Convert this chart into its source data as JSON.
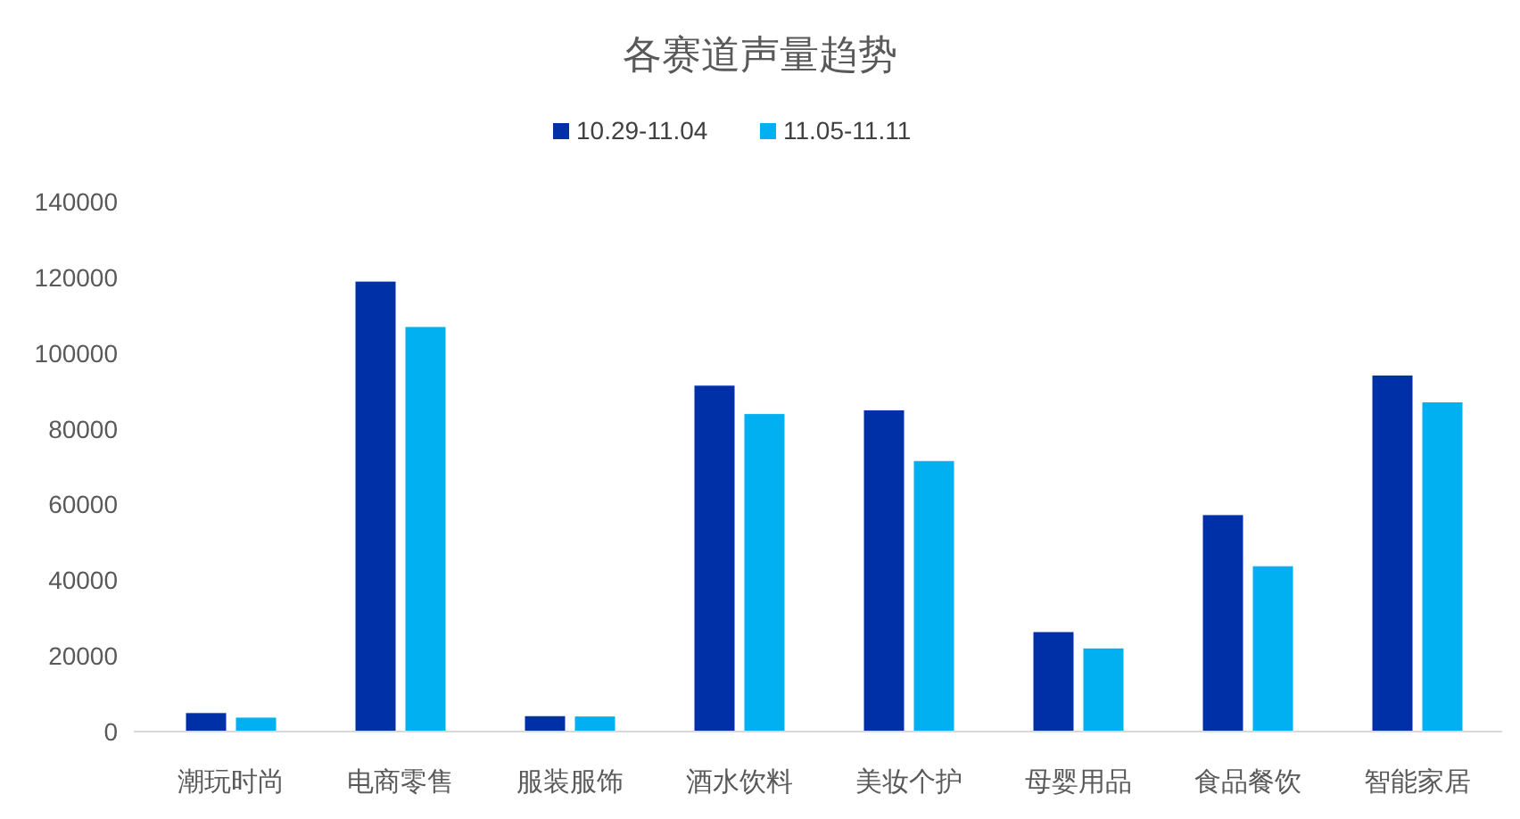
{
  "chart_data": {
    "type": "bar",
    "title": "各赛道声量趋势",
    "categories": [
      "潮玩时尚",
      "电商零售",
      "服装服饰",
      "酒水饮料",
      "美妆个护",
      "母婴用品",
      "食品餐饮",
      "智能家居"
    ],
    "series": [
      {
        "name": "10.29-11.04",
        "color": "#0030a8",
        "values": [
          5000,
          119000,
          4200,
          91500,
          85000,
          26400,
          57300,
          94200
        ]
      },
      {
        "name": "11.05-11.11",
        "color": "#00b0f0",
        "values": [
          3800,
          107000,
          4100,
          84000,
          71600,
          22100,
          43800,
          87100
        ]
      }
    ],
    "ylim": [
      0,
      140000
    ],
    "yticks": [
      0,
      20000,
      40000,
      60000,
      80000,
      100000,
      120000,
      140000
    ],
    "grid": false,
    "legend": "top"
  }
}
